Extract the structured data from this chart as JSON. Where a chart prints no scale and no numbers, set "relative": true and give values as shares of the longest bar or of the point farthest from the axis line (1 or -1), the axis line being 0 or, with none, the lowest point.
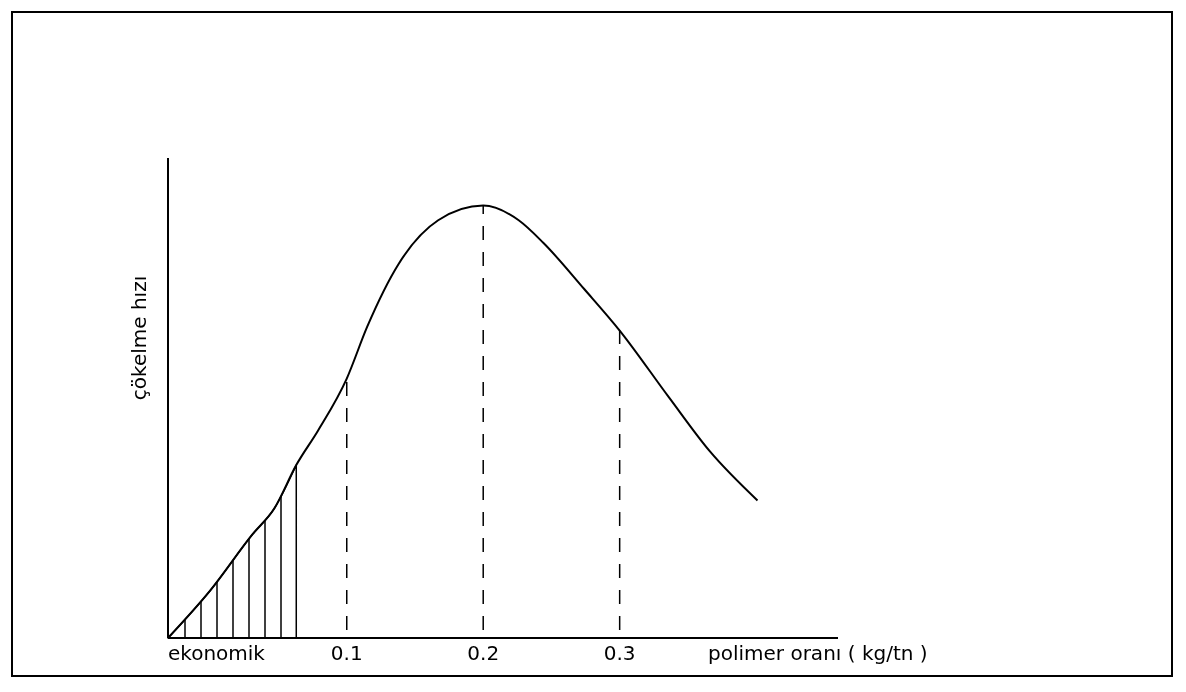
{
  "chart_data": {
    "type": "line",
    "relative": true,
    "xlabel": "polimer oranı ( kg/tn )",
    "ylabel": "çökelme hızı",
    "xlim": [
      -0.031,
      0.46
    ],
    "xticks": [
      0.1,
      0.2,
      0.3
    ],
    "tick_labels": "x",
    "grid": false,
    "series": [
      {
        "type": "area",
        "color": "#000000",
        "x": [
          -0.031,
          0,
          0.031,
          0.047,
          0.063
        ],
        "values": [
          0,
          0.11,
          0.24,
          0.3,
          0.4
        ]
      },
      {
        "color": "#000000",
        "x": [
          -0.031,
          0,
          0.031,
          0.047,
          0.063,
          0.079,
          0.1,
          0.115,
          0.138,
          0.167,
          0.2,
          0.226,
          0.244,
          0.274,
          0.3,
          0.336,
          0.366,
          0.401
        ],
        "values": [
          0,
          0.11,
          0.24,
          0.3,
          0.4,
          0.48,
          0.6,
          0.72,
          0.865,
          0.966,
          1,
          0.966,
          0.914,
          0.807,
          0.711,
          0.557,
          0.432,
          0.318
        ]
      }
    ],
    "ref_lines": [
      {
        "axis": "x",
        "value": 0.1,
        "line_style": "dashed"
      },
      {
        "axis": "x",
        "value": 0.2,
        "line_style": "dashed"
      },
      {
        "axis": "x",
        "value": 0.3,
        "line_style": "dashed"
      }
    ],
    "annotations": [
      {
        "text": "ekonomik",
        "x": -0.031,
        "y": 0
      }
    ]
  }
}
